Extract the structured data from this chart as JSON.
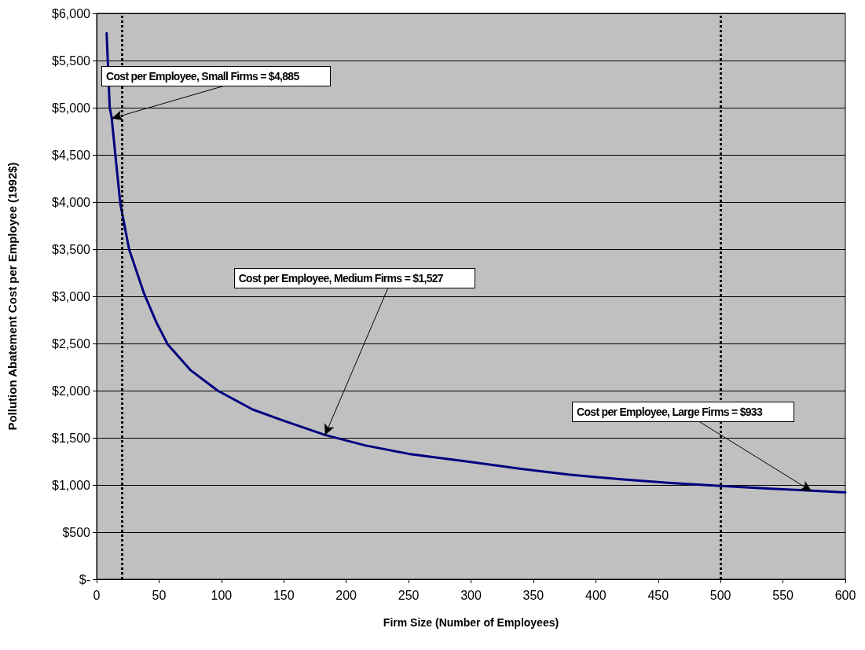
{
  "chart_data": {
    "type": "line",
    "xlabel": "Firm Size (Number of Employees)",
    "ylabel": "Pollution Abatement Cost per Employee (1992$)",
    "x": [
      8,
      10.5,
      12,
      15,
      19,
      26,
      38,
      48,
      57,
      75,
      97,
      125,
      150,
      183,
      215,
      250,
      302,
      340,
      378,
      420,
      460,
      500,
      540,
      573,
      600
    ],
    "series": [
      {
        "color": "#000080",
        "values": [
          5790,
          5000,
          4900,
          4500,
          3980,
          3500,
          3030,
          2720,
          2490,
          2220,
          2000,
          1800,
          1680,
          1530,
          1420,
          1330,
          1240,
          1170,
          1110,
          1060,
          1020,
          990,
          960,
          940,
          920
        ]
      }
    ],
    "xlim": [
      0,
      600
    ],
    "xticks": [
      0,
      50,
      100,
      150,
      200,
      250,
      300,
      350,
      400,
      450,
      500,
      550,
      600
    ],
    "ylim": [
      0,
      6000
    ],
    "yticks": [
      {
        "value": 0,
        "label": "$-"
      },
      {
        "value": 500,
        "label": "$500"
      },
      {
        "value": 1000,
        "label": "$1,000"
      },
      {
        "value": 1500,
        "label": "$1,500"
      },
      {
        "value": 2000,
        "label": "$2,000"
      },
      {
        "value": 2500,
        "label": "$2,500"
      },
      {
        "value": 3000,
        "label": "$3,000"
      },
      {
        "value": 3500,
        "label": "$3,500"
      },
      {
        "value": 4000,
        "label": "$4,000"
      },
      {
        "value": 4500,
        "label": "$4,500"
      },
      {
        "value": 5000,
        "label": "$5,000"
      },
      {
        "value": 5500,
        "label": "$5,500"
      },
      {
        "value": 6000,
        "label": "$6,000"
      }
    ],
    "grid": "y",
    "marker": "none",
    "line_style": "solid",
    "ref_lines": [
      {
        "axis": "x",
        "value": 20,
        "color": "#000000",
        "line_style": "dotted"
      },
      {
        "axis": "x",
        "value": 500,
        "color": "#000000",
        "line_style": "dotted"
      }
    ],
    "annotations": [
      {
        "text": "Cost per Employee, Small Firms = $4,885",
        "x": 12,
        "y": 4885
      },
      {
        "text": "Cost per Employee, Medium Firms = $1,527",
        "x": 183,
        "y": 1527
      },
      {
        "text": "Cost per Employee, Large Firms = $933",
        "x": 573,
        "y": 933
      }
    ]
  }
}
